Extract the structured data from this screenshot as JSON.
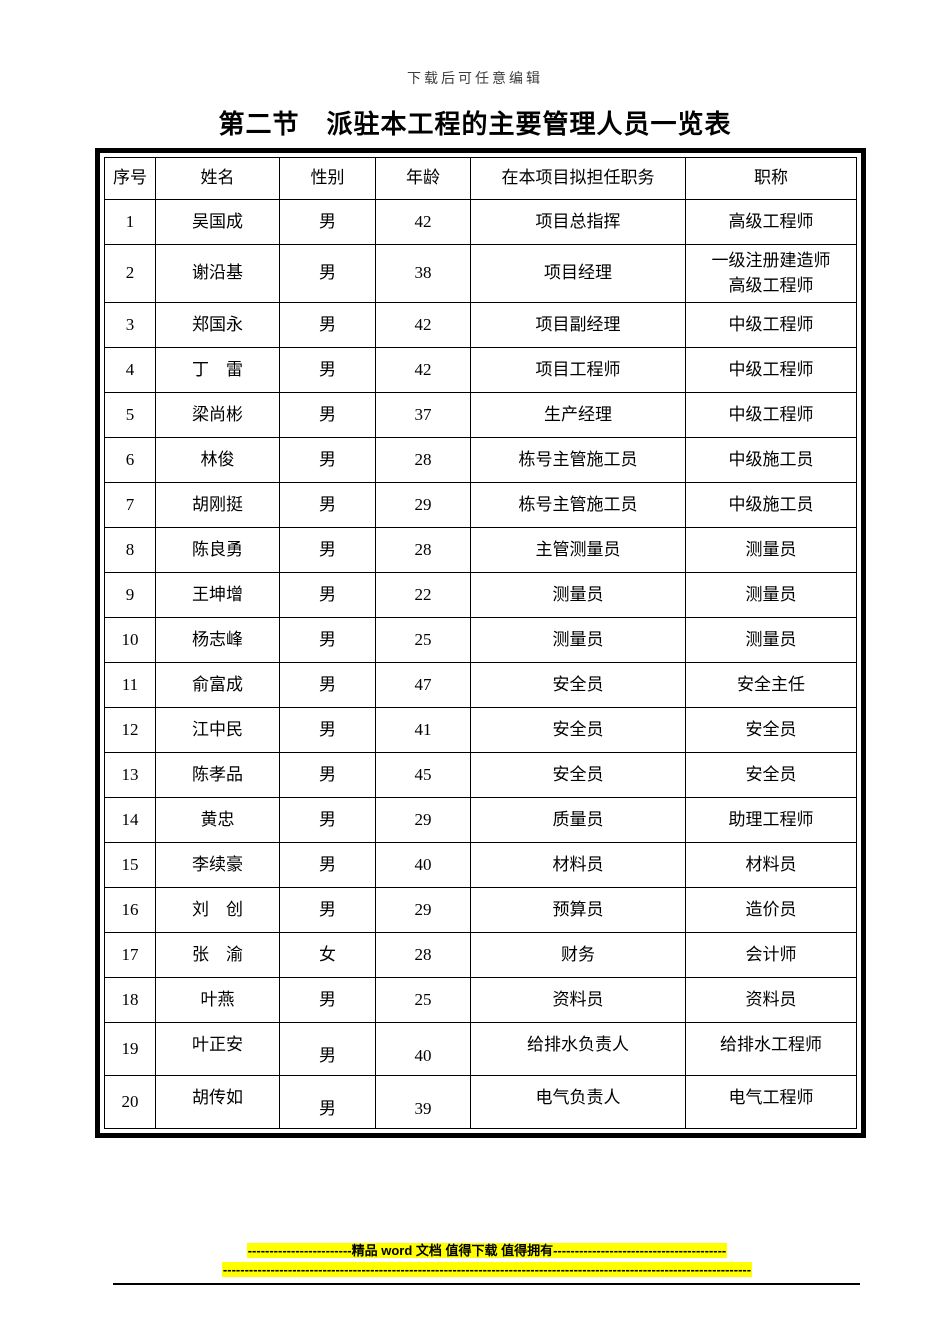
{
  "page": {
    "top_note": "下载后可任意编辑",
    "title": "第二节　派驻本工程的主要管理人员一览表"
  },
  "table": {
    "headers": [
      "序号",
      "姓名",
      "性别",
      "年龄",
      "在本项目拟担任职务",
      "职称"
    ],
    "rows": [
      [
        "1",
        "吴国成",
        "男",
        "42",
        "项目总指挥",
        "高级工程师"
      ],
      [
        "2",
        "谢沿基",
        "男",
        "38",
        "项目经理",
        "一级注册建造师\n高级工程师"
      ],
      [
        "3",
        "郑国永",
        "男",
        "42",
        "项目副经理",
        "中级工程师"
      ],
      [
        "4",
        "丁　雷",
        "男",
        "42",
        "项目工程师",
        "中级工程师"
      ],
      [
        "5",
        "梁尚彬",
        "男",
        "37",
        "生产经理",
        "中级工程师"
      ],
      [
        "6",
        "林俊",
        "男",
        "28",
        "栋号主管施工员",
        "中级施工员"
      ],
      [
        "7",
        "胡刚挺",
        "男",
        "29",
        "栋号主管施工员",
        "中级施工员"
      ],
      [
        "8",
        "陈良勇",
        "男",
        "28",
        "主管测量员",
        "测量员"
      ],
      [
        "9",
        "王坤增",
        "男",
        "22",
        "测量员",
        "测量员"
      ],
      [
        "10",
        "杨志峰",
        "男",
        "25",
        "测量员",
        "测量员"
      ],
      [
        "11",
        "俞富成",
        "男",
        "47",
        "安全员",
        "安全主任"
      ],
      [
        "12",
        "江中民",
        "男",
        "41",
        "安全员",
        "安全员"
      ],
      [
        "13",
        "陈孝品",
        "男",
        "45",
        "安全员",
        "安全员"
      ],
      [
        "14",
        "黄忠",
        "男",
        "29",
        "质量员",
        "助理工程师"
      ],
      [
        "15",
        "李续豪",
        "男",
        "40",
        "材料员",
        "材料员"
      ],
      [
        "16",
        "刘　创",
        "男",
        "29",
        "预算员",
        "造价员"
      ],
      [
        "17",
        "张　渝",
        "女",
        "28",
        "财务",
        "会计师"
      ],
      [
        "18",
        "叶燕",
        "男",
        "25",
        "资料员",
        "资料员"
      ],
      [
        "19",
        "叶正安",
        "男",
        "40",
        "给排水负责人",
        "给排水工程师"
      ],
      [
        "20",
        "胡传如",
        "男",
        "39",
        "电气负责人",
        "电气工程师"
      ]
    ]
  },
  "footer": {
    "line1": "------------------------精品 word 文档 值得下载 值得拥有----------------------------------------",
    "line2": "--------------------------------------------------------------------------------------------------------------------------",
    "highlight_color": "#ffff00"
  },
  "colors": {
    "highlight": "#ffff00",
    "border": "#000000",
    "text": "#000000",
    "top_note_text": "#3c3c3c"
  }
}
